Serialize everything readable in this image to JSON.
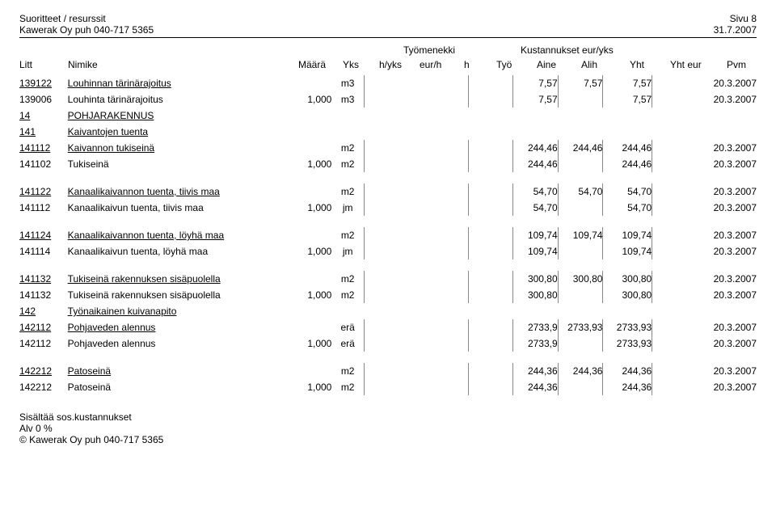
{
  "header": {
    "title": "Suoritteet / resurssit",
    "company": "Kawerak Oy puh 040-717 5365",
    "page": "Sivu 8",
    "date": "31.7.2007"
  },
  "groups": {
    "tyomenekki": "Työmenekki",
    "kustannukset": "Kustannukset eur/yks"
  },
  "columns": {
    "litt": "Litt",
    "nimike": "Nimike",
    "maara": "Määrä",
    "yks": "Yks",
    "hyks": "h/yks",
    "eurh": "eur/h",
    "h": "h",
    "tyo": "Työ",
    "aine": "Aine",
    "alih": "Alih",
    "yht": "Yht",
    "yhteur": "Yht eur",
    "pvm": "Pvm"
  },
  "rows": [
    {
      "type": "data",
      "litt": "139122",
      "u": true,
      "nimike": "Louhinnan tärinärajoitus",
      "maara": "",
      "yks": "m3",
      "aine": "7,57",
      "alih": "7,57",
      "yht": "7,57",
      "pvm": "20.3.2007"
    },
    {
      "type": "data",
      "litt": "139006",
      "nimike": "Louhinta tärinärajoitus",
      "maara": "1,000",
      "yks": "m3",
      "aine": "7,57",
      "yht": "7,57",
      "pvm": "20.3.2007"
    },
    {
      "type": "section",
      "litt": "14",
      "u": true,
      "nimike": "POHJARAKENNUS"
    },
    {
      "type": "section",
      "litt": "141",
      "u": true,
      "nimike": "Kaivantojen tuenta"
    },
    {
      "type": "data",
      "litt": "141112",
      "u": true,
      "nimike": "Kaivannon tukiseinä",
      "maara": "",
      "yks": "m2",
      "aine": "244,46",
      "alih": "244,46",
      "yht": "244,46",
      "pvm": "20.3.2007"
    },
    {
      "type": "data",
      "litt": "141102",
      "nimike": "Tukiseinä",
      "maara": "1,000",
      "yks": "m2",
      "aine": "244,46",
      "yht": "244,46",
      "pvm": "20.3.2007"
    },
    {
      "type": "sep"
    },
    {
      "type": "data",
      "litt": "141122",
      "u": true,
      "nimike": "Kanaalikaivannon tuenta, tiivis maa",
      "maara": "",
      "yks": "m2",
      "aine": "54,70",
      "alih": "54,70",
      "yht": "54,70",
      "pvm": "20.3.2007"
    },
    {
      "type": "data",
      "litt": "141112",
      "nimike": "Kanaalikaivun tuenta, tiivis maa",
      "maara": "1,000",
      "yks": "jm",
      "aine": "54,70",
      "yht": "54,70",
      "pvm": "20.3.2007"
    },
    {
      "type": "sep"
    },
    {
      "type": "data",
      "litt": "141124",
      "u": true,
      "nimike": "Kanaalikaivannon tuenta, löyhä maa",
      "maara": "",
      "yks": "m2",
      "aine": "109,74",
      "alih": "109,74",
      "yht": "109,74",
      "pvm": "20.3.2007"
    },
    {
      "type": "data",
      "litt": "141114",
      "nimike": "Kanaalikaivun tuenta, löyhä maa",
      "maara": "1,000",
      "yks": "jm",
      "aine": "109,74",
      "yht": "109,74",
      "pvm": "20.3.2007"
    },
    {
      "type": "sep"
    },
    {
      "type": "data",
      "litt": "141132",
      "u": true,
      "nimike": "Tukiseinä rakennuksen sisäpuolella",
      "maara": "",
      "yks": "m2",
      "aine": "300,80",
      "alih": "300,80",
      "yht": "300,80",
      "pvm": "20.3.2007"
    },
    {
      "type": "data",
      "litt": "141132",
      "nimike": "Tukiseinä rakennuksen sisäpuolella",
      "maara": "1,000",
      "yks": "m2",
      "aine": "300,80",
      "yht": "300,80",
      "pvm": "20.3.2007"
    },
    {
      "type": "section",
      "litt": "142",
      "u": true,
      "nimike": "Työnaikainen kuivanapito"
    },
    {
      "type": "data",
      "litt": "142112",
      "u": true,
      "nimike": "Pohjaveden alennus",
      "maara": "",
      "yks": "erä",
      "aine": "2733,9",
      "alih": "2733,93",
      "yht": "2733,93",
      "pvm": "20.3.2007"
    },
    {
      "type": "data",
      "litt": "142112",
      "nimike": "Pohjaveden alennus",
      "maara": "1,000",
      "yks": "erä",
      "aine": "2733,9",
      "yht": "2733,93",
      "pvm": "20.3.2007"
    },
    {
      "type": "sep"
    },
    {
      "type": "data",
      "litt": "142212",
      "u": true,
      "nimike": "Patoseinä",
      "maara": "",
      "yks": "m2",
      "aine": "244,36",
      "alih": "244,36",
      "yht": "244,36",
      "pvm": "20.3.2007"
    },
    {
      "type": "data",
      "litt": "142212",
      "nimike": "Patoseinä",
      "maara": "1,000",
      "yks": "m2",
      "aine": "244,36",
      "yht": "244,36",
      "pvm": "20.3.2007"
    }
  ],
  "footer": {
    "line1": "Sisältää sos.kustannukset",
    "line2": "Alv 0 %",
    "line3": "©  Kawerak Oy puh 040-717 5365"
  }
}
